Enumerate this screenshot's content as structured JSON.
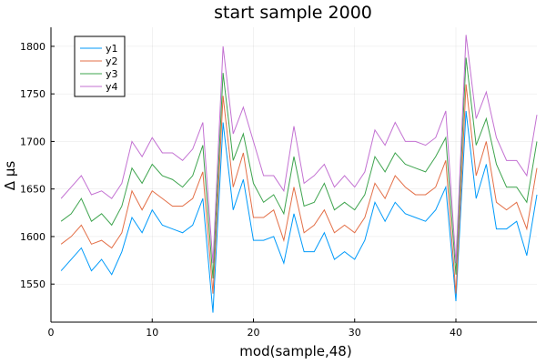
{
  "chart_data": {
    "type": "line",
    "title": "start sample 2000",
    "xlabel": "mod(sample,48)",
    "ylabel": "Δ µs",
    "xlim": [
      0,
      48
    ],
    "ylim": [
      1510,
      1820
    ],
    "xticks": [
      0,
      10,
      20,
      30,
      40
    ],
    "yticks": [
      1550,
      1600,
      1650,
      1700,
      1750,
      1800
    ],
    "grid": true,
    "legend_position": "top-left",
    "x": [
      1,
      2,
      3,
      4,
      5,
      6,
      7,
      8,
      9,
      10,
      11,
      12,
      13,
      14,
      15,
      16,
      17,
      18,
      19,
      20,
      21,
      22,
      23,
      24,
      25,
      26,
      27,
      28,
      29,
      30,
      31,
      32,
      33,
      34,
      35,
      36,
      37,
      38,
      39,
      40,
      41,
      42,
      43,
      44,
      45,
      46,
      47,
      48
    ],
    "series": [
      {
        "name": "y1",
        "color": "#009AFA",
        "values": [
          1564,
          1576,
          1588,
          1564,
          1576,
          1560,
          1584,
          1620,
          1604,
          1628,
          1612,
          1608,
          1604,
          1612,
          1640,
          1520,
          1720,
          1628,
          1660,
          1596,
          1596,
          1600,
          1572,
          1624,
          1584,
          1584,
          1604,
          1576,
          1584,
          1576,
          1596,
          1636,
          1616,
          1636,
          1624,
          1620,
          1616,
          1628,
          1652,
          1532,
          1732,
          1640,
          1676,
          1608,
          1608,
          1616,
          1580,
          1644
        ]
      },
      {
        "name": "y2",
        "color": "#E36F47",
        "values": [
          1592,
          1600,
          1612,
          1592,
          1596,
          1588,
          1604,
          1648,
          1628,
          1648,
          1640,
          1632,
          1632,
          1640,
          1668,
          1540,
          1748,
          1652,
          1688,
          1620,
          1620,
          1628,
          1596,
          1652,
          1604,
          1612,
          1628,
          1604,
          1612,
          1604,
          1620,
          1656,
          1640,
          1664,
          1652,
          1644,
          1644,
          1652,
          1680,
          1540,
          1760,
          1664,
          1700,
          1636,
          1628,
          1636,
          1608,
          1672
        ]
      },
      {
        "name": "y3",
        "color": "#3EA44E",
        "values": [
          1616,
          1624,
          1640,
          1616,
          1624,
          1612,
          1632,
          1672,
          1656,
          1676,
          1664,
          1660,
          1652,
          1664,
          1696,
          1556,
          1772,
          1680,
          1708,
          1656,
          1636,
          1644,
          1624,
          1684,
          1632,
          1636,
          1656,
          1628,
          1636,
          1628,
          1644,
          1684,
          1668,
          1688,
          1676,
          1672,
          1668,
          1684,
          1704,
          1560,
          1788,
          1696,
          1724,
          1676,
          1652,
          1652,
          1636,
          1700
        ]
      },
      {
        "name": "y4",
        "color": "#C371D2",
        "values": [
          1640,
          1652,
          1664,
          1644,
          1648,
          1640,
          1656,
          1700,
          1684,
          1704,
          1688,
          1688,
          1680,
          1692,
          1720,
          1572,
          1800,
          1708,
          1736,
          1700,
          1664,
          1664,
          1648,
          1716,
          1656,
          1664,
          1676,
          1652,
          1664,
          1652,
          1668,
          1712,
          1696,
          1720,
          1700,
          1700,
          1696,
          1704,
          1732,
          1572,
          1812,
          1724,
          1752,
          1704,
          1680,
          1680,
          1664,
          1728
        ]
      }
    ]
  }
}
